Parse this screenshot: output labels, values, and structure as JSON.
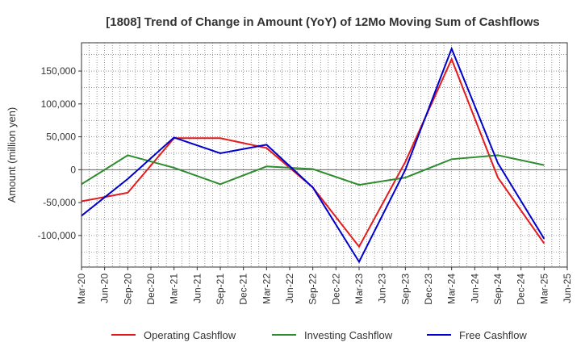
{
  "chart_data": {
    "type": "line",
    "title": "[1808]  Trend of Change in Amount (YoY) of 12Mo Moving Sum of Cashflows",
    "xlabel": "",
    "ylabel": "Amount (million yen)",
    "ylim": [
      -148000,
      193000
    ],
    "yticks": [
      150000,
      100000,
      50000,
      0,
      -50000,
      -100000
    ],
    "ytick_labels": [
      "150,000",
      "100,000",
      "50,000",
      "0",
      "-50,000",
      "-100,000"
    ],
    "categories": [
      "Mar-20",
      "Jun-20",
      "Sep-20",
      "Dec-20",
      "Mar-21",
      "Jun-21",
      "Sep-21",
      "Dec-21",
      "Mar-22",
      "Jun-22",
      "Sep-22",
      "Dec-22",
      "Mar-23",
      "Jun-23",
      "Sep-23",
      "Dec-23",
      "Mar-24",
      "Jun-24",
      "Sep-24",
      "Dec-24",
      "Mar-25",
      "Jun-25"
    ],
    "grid": true,
    "legend_position": "bottom",
    "series": [
      {
        "name": "Operating Cashflow",
        "color": "#e41a1c",
        "points": [
          [
            "Mar-20",
            -48000
          ],
          [
            "Sep-20",
            -35000
          ],
          [
            "Mar-21",
            48000
          ],
          [
            "Sep-21",
            48000
          ],
          [
            "Mar-22",
            33000
          ],
          [
            "Sep-22",
            -27000
          ],
          [
            "Mar-23",
            -117000
          ],
          [
            "Sep-23",
            12000
          ],
          [
            "Mar-24",
            168000
          ],
          [
            "Sep-24",
            -12000
          ],
          [
            "Mar-25",
            -112000
          ]
        ]
      },
      {
        "name": "Investing Cashflow",
        "color": "#2e8b2e",
        "points": [
          [
            "Mar-20",
            -22000
          ],
          [
            "Sep-20",
            22000
          ],
          [
            "Mar-21",
            3000
          ],
          [
            "Sep-21",
            -22000
          ],
          [
            "Mar-22",
            5000
          ],
          [
            "Sep-22",
            1000
          ],
          [
            "Mar-23",
            -23000
          ],
          [
            "Sep-23",
            -12000
          ],
          [
            "Mar-24",
            16000
          ],
          [
            "Sep-24",
            22000
          ],
          [
            "Mar-25",
            7000
          ]
        ]
      },
      {
        "name": "Free Cashflow",
        "color": "#0000cc",
        "points": [
          [
            "Mar-20",
            -70000
          ],
          [
            "Sep-20",
            -14000
          ],
          [
            "Mar-21",
            49000
          ],
          [
            "Sep-21",
            25000
          ],
          [
            "Mar-22",
            38000
          ],
          [
            "Sep-22",
            -27000
          ],
          [
            "Mar-23",
            -140000
          ],
          [
            "Sep-23",
            0
          ],
          [
            "Mar-24",
            184000
          ],
          [
            "Sep-24",
            10000
          ],
          [
            "Mar-25",
            -105000
          ]
        ]
      }
    ]
  }
}
